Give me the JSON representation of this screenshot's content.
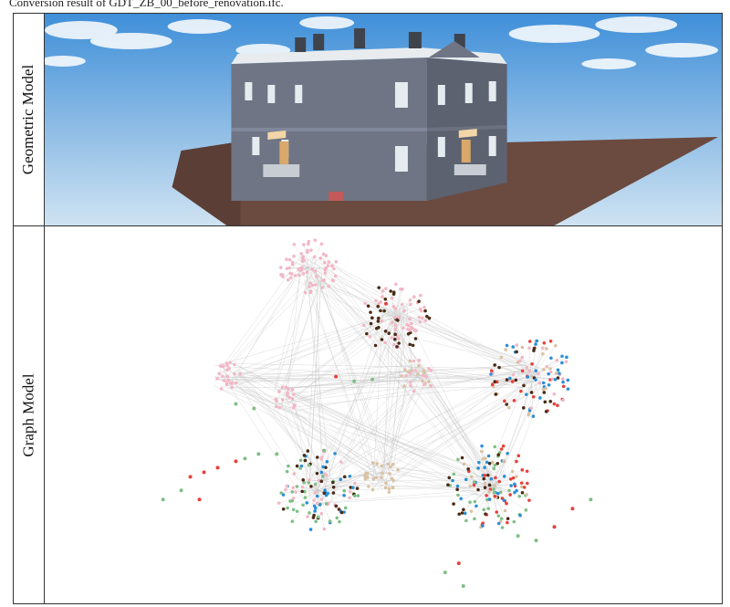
{
  "caption": "Conversion result of GDT_ZB_00_before_renovation.ifc.",
  "rows": [
    {
      "label": "Geometric Model"
    },
    {
      "label": "Graph Model"
    }
  ],
  "colors": {
    "sky_top": "#3f8fd9",
    "sky_bottom": "#cfe3f2",
    "ground": "#6b4a40",
    "wall": "#6f7584",
    "wall_dark": "#5d6270",
    "roof": "#e8ecef",
    "node_pink": "#f2b7c6",
    "node_red": "#e8403a",
    "node_blue": "#2a8fd6",
    "node_brown": "#4a2a14",
    "node_green": "#7fbf86",
    "node_tan": "#d9c3a4"
  },
  "icons": [
    "building-render",
    "network-graph"
  ]
}
